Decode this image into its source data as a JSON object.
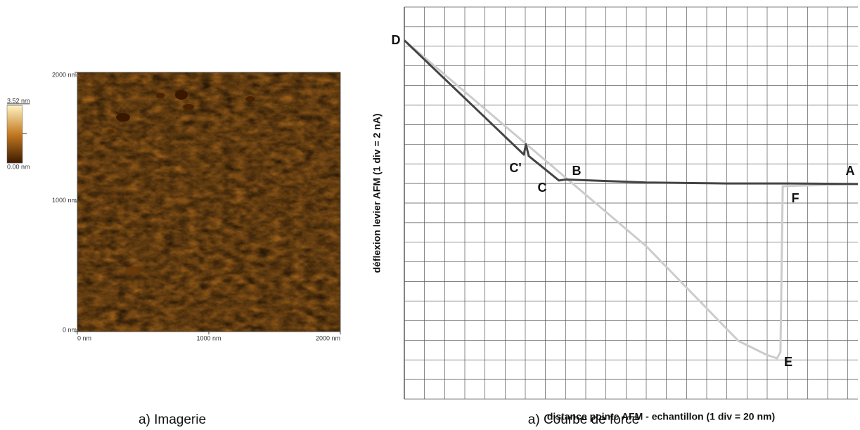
{
  "chart_data": [
    {
      "type": "image",
      "caption": "a) Imagerie",
      "xlim": [
        0,
        2000
      ],
      "ylim": [
        0,
        2000
      ],
      "xticks": [
        {
          "value": 0,
          "label": "0 nm"
        },
        {
          "value": 1000,
          "label": "1000 nm"
        },
        {
          "value": 2000,
          "label": "2000 nm"
        }
      ],
      "yticks": [
        {
          "value": 0,
          "label": "0 nm"
        },
        {
          "value": 1000,
          "label": "1000 nm"
        },
        {
          "value": 2000,
          "label": "2000 nm"
        }
      ],
      "clim": [
        0,
        3.52
      ],
      "cticks": [
        {
          "value": 0,
          "label": "0.00 nm"
        },
        {
          "value": 3.52,
          "label": "3.52 nm"
        }
      ]
    },
    {
      "type": "line",
      "caption": "a) Courbe de force",
      "x_label": "distance pointe AFM - echantillon (1 div = 20 nm)",
      "y_label": "déflexion levier AFM (1 div = 2 nA)",
      "xlim": [
        0,
        22.5
      ],
      "ylim": [
        0,
        20
      ],
      "xticks": [
        0,
        1,
        2,
        3,
        4,
        5,
        6,
        7,
        8,
        9,
        10,
        11,
        12,
        13,
        14,
        15,
        16,
        17,
        18,
        19,
        20,
        21,
        22
      ],
      "yticks": [
        0,
        1,
        2,
        3,
        4,
        5,
        6,
        7,
        8,
        9,
        10,
        11,
        12,
        13,
        14,
        15,
        16,
        17,
        18,
        19,
        20
      ],
      "grid": true,
      "series": [
        {
          "color": "#cccccc",
          "x": [
            0,
            4,
            8,
            12,
            16.57,
            17.96,
            18.49,
            18.66,
            18.77,
            20,
            22.5
          ],
          "values": [
            18.3,
            14.8,
            11.3,
            7.8,
            2.97,
            2.26,
            2.08,
            2.4,
            10.86,
            10.9,
            10.97
          ]
        },
        {
          "color": "#444444",
          "x": [
            0,
            3,
            5.93,
            6.03,
            6.17,
            7.67,
            8.0,
            12,
            16,
            19,
            22.5
          ],
          "values": [
            18.3,
            15.35,
            12.47,
            13.0,
            12.4,
            11.15,
            11.2,
            11.05,
            11.0,
            11.0,
            10.97
          ]
        }
      ],
      "annotations": [
        "D",
        "C'",
        "C",
        "B",
        "A",
        "F",
        "E"
      ]
    }
  ]
}
